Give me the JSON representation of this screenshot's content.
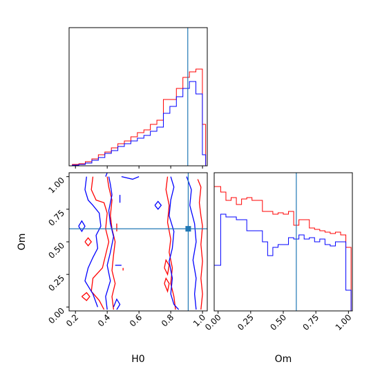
{
  "colors": {
    "red": "#ff0000",
    "blue": "#0000ff",
    "truth": "#1f77b4",
    "axis": "#000000"
  },
  "chart_data": [
    {
      "type": "histogram",
      "panel": "H0 marginal",
      "truth_value": 0.91,
      "x_edges": [
        0.2,
        0.24,
        0.28,
        0.32,
        0.36,
        0.4,
        0.44,
        0.48,
        0.52,
        0.56,
        0.6,
        0.64,
        0.68,
        0.72,
        0.76,
        0.8,
        0.84,
        0.88,
        0.92,
        0.96,
        1.0,
        1.02
      ],
      "xlim": [
        0.18,
        1.03
      ],
      "ylim": [
        0,
        1.0
      ],
      "series": [
        {
          "color": "red",
          "values": [
            0.01,
            0.015,
            0.03,
            0.05,
            0.08,
            0.1,
            0.13,
            0.16,
            0.18,
            0.21,
            0.24,
            0.26,
            0.3,
            0.33,
            0.48,
            0.48,
            0.56,
            0.64,
            0.68,
            0.7,
            0.3
          ]
        },
        {
          "color": "blue",
          "values": [
            0.005,
            0.01,
            0.02,
            0.04,
            0.06,
            0.09,
            0.11,
            0.14,
            0.16,
            0.18,
            0.2,
            0.22,
            0.25,
            0.28,
            0.38,
            0.43,
            0.5,
            0.56,
            0.61,
            0.52,
            0.08
          ]
        }
      ]
    },
    {
      "type": "histogram",
      "panel": "Om marginal",
      "truth_value": 0.6,
      "x_edges": [
        -0.03,
        0.02,
        0.06,
        0.1,
        0.14,
        0.18,
        0.22,
        0.26,
        0.3,
        0.34,
        0.38,
        0.42,
        0.46,
        0.5,
        0.54,
        0.58,
        0.62,
        0.66,
        0.7,
        0.74,
        0.78,
        0.82,
        0.86,
        0.9,
        0.94,
        0.98,
        1.02
      ],
      "xlim": [
        -0.03,
        1.03
      ],
      "ylim": [
        0,
        1.0
      ],
      "series": [
        {
          "color": "red",
          "values": [
            0.9,
            0.86,
            0.8,
            0.82,
            0.77,
            0.81,
            0.82,
            0.8,
            0.8,
            0.72,
            0.72,
            0.7,
            0.71,
            0.7,
            0.72,
            0.62,
            0.66,
            0.66,
            0.6,
            0.59,
            0.58,
            0.57,
            0.56,
            0.57,
            0.55,
            0.46
          ]
        },
        {
          "color": "blue",
          "values": [
            0.33,
            0.7,
            0.68,
            0.68,
            0.66,
            0.66,
            0.58,
            0.58,
            0.58,
            0.5,
            0.4,
            0.46,
            0.48,
            0.48,
            0.53,
            0.52,
            0.55,
            0.52,
            0.53,
            0.5,
            0.52,
            0.48,
            0.47,
            0.5,
            0.5,
            0.15
          ]
        }
      ]
    },
    {
      "type": "contour",
      "panel": "H0 vs Om",
      "xlabel": "H0",
      "ylabel": "Om",
      "xlim": [
        0.16,
        1.03
      ],
      "ylim": [
        -0.03,
        1.03
      ],
      "xticks": [
        "0.2",
        "0.4",
        "0.6",
        "0.8",
        "1.0"
      ],
      "xtick_values": [
        0.2,
        0.4,
        0.6,
        0.8,
        1.0
      ],
      "yticks": [
        "0.00",
        "0.25",
        "0.50",
        "0.75",
        "1.00"
      ],
      "ytick_values": [
        0.0,
        0.25,
        0.5,
        0.75,
        1.0
      ],
      "truth": {
        "x": 0.91,
        "y": 0.6
      },
      "series": [
        {
          "color": "red",
          "contours": [
            [
              [
                0.31,
                1.0
              ],
              [
                0.3,
                0.9
              ],
              [
                0.33,
                0.82
              ],
              [
                0.38,
                0.8
              ],
              [
                0.4,
                0.72
              ],
              [
                0.39,
                0.6
              ],
              [
                0.41,
                0.5
              ],
              [
                0.39,
                0.4
              ],
              [
                0.37,
                0.3
              ],
              [
                0.31,
                0.22
              ],
              [
                0.3,
                0.12
              ],
              [
                0.35,
                0.05
              ],
              [
                0.38,
                -0.02
              ]
            ],
            [
              [
                0.4,
                1.0
              ],
              [
                0.41,
                0.92
              ],
              [
                0.43,
                0.82
              ],
              [
                0.42,
                0.7
              ],
              [
                0.43,
                0.6
              ],
              [
                0.45,
                0.5
              ],
              [
                0.44,
                0.4
              ],
              [
                0.43,
                0.28
              ],
              [
                0.45,
                0.18
              ],
              [
                0.43,
                0.08
              ],
              [
                0.44,
                -0.02
              ]
            ],
            [
              [
                0.78,
                1.0
              ],
              [
                0.77,
                0.9
              ],
              [
                0.79,
                0.78
              ],
              [
                0.78,
                0.65
              ],
              [
                0.8,
                0.52
              ],
              [
                0.79,
                0.42
              ],
              [
                0.81,
                0.3
              ],
              [
                0.8,
                0.18
              ],
              [
                0.82,
                0.08
              ],
              [
                0.83,
                -0.02
              ]
            ],
            [
              [
                0.97,
                0.98
              ],
              [
                0.99,
                0.92
              ],
              [
                0.98,
                0.8
              ],
              [
                0.99,
                0.7
              ],
              [
                1.0,
                0.62
              ],
              [
                0.99,
                0.48
              ],
              [
                1.0,
                0.35
              ],
              [
                0.99,
                0.22
              ],
              [
                1.0,
                0.1
              ],
              [
                0.99,
                -0.02
              ]
            ],
            [
              [
                0.24,
                0.08
              ],
              [
                0.27,
                0.05
              ],
              [
                0.29,
                0.08
              ],
              [
                0.27,
                0.11
              ],
              [
                0.24,
                0.08
              ]
            ],
            [
              [
                0.26,
                0.5
              ],
              [
                0.28,
                0.47
              ],
              [
                0.3,
                0.5
              ],
              [
                0.28,
                0.53
              ],
              [
                0.26,
                0.5
              ]
            ],
            [
              [
                0.76,
                0.3
              ],
              [
                0.78,
                0.25
              ],
              [
                0.79,
                0.32
              ],
              [
                0.77,
                0.36
              ],
              [
                0.76,
                0.3
              ]
            ],
            [
              [
                0.76,
                0.18
              ],
              [
                0.78,
                0.12
              ],
              [
                0.79,
                0.18
              ],
              [
                0.77,
                0.22
              ],
              [
                0.76,
                0.18
              ]
            ],
            [
              [
                0.46,
                0.58
              ],
              [
                0.46,
                0.64
              ]
            ],
            [
              [
                0.5,
                0.28
              ],
              [
                0.5,
                0.3
              ]
            ]
          ]
        },
        {
          "color": "blue",
          "contours": [
            [
              [
                0.27,
                1.0
              ],
              [
                0.26,
                0.9
              ],
              [
                0.28,
                0.82
              ],
              [
                0.31,
                0.78
              ],
              [
                0.35,
                0.72
              ],
              [
                0.36,
                0.62
              ],
              [
                0.33,
                0.55
              ],
              [
                0.34,
                0.45
              ],
              [
                0.31,
                0.38
              ],
              [
                0.28,
                0.3
              ],
              [
                0.26,
                0.2
              ],
              [
                0.31,
                0.1
              ],
              [
                0.34,
                0.0
              ]
            ],
            [
              [
                0.41,
                1.0
              ],
              [
                0.42,
                0.94
              ],
              [
                0.43,
                0.86
              ],
              [
                0.41,
                0.74
              ],
              [
                0.42,
                0.64
              ],
              [
                0.44,
                0.54
              ],
              [
                0.42,
                0.42
              ],
              [
                0.4,
                0.32
              ],
              [
                0.42,
                0.2
              ],
              [
                0.39,
                0.08
              ],
              [
                0.4,
                -0.02
              ]
            ],
            [
              [
                0.49,
                1.0
              ],
              [
                0.56,
                0.98
              ],
              [
                0.6,
                1.0
              ]
            ],
            [
              [
                0.8,
                1.0
              ],
              [
                0.82,
                0.92
              ],
              [
                0.8,
                0.82
              ],
              [
                0.79,
                0.7
              ],
              [
                0.82,
                0.58
              ],
              [
                0.81,
                0.45
              ],
              [
                0.79,
                0.35
              ],
              [
                0.81,
                0.22
              ],
              [
                0.8,
                0.1
              ],
              [
                0.82,
                0.02
              ],
              [
                0.85,
                -0.02
              ]
            ],
            [
              [
                0.9,
                1.0
              ],
              [
                0.93,
                0.9
              ],
              [
                0.92,
                0.78
              ],
              [
                0.95,
                0.64
              ],
              [
                0.96,
                0.5
              ],
              [
                0.94,
                0.36
              ],
              [
                0.96,
                0.22
              ],
              [
                0.95,
                0.1
              ],
              [
                0.96,
                -0.02
              ]
            ],
            [
              [
                0.22,
                0.62
              ],
              [
                0.24,
                0.58
              ],
              [
                0.26,
                0.62
              ],
              [
                0.24,
                0.66
              ],
              [
                0.22,
                0.62
              ]
            ],
            [
              [
                0.7,
                0.78
              ],
              [
                0.72,
                0.75
              ],
              [
                0.74,
                0.78
              ],
              [
                0.72,
                0.81
              ],
              [
                0.7,
                0.78
              ]
            ],
            [
              [
                0.44,
                0.0
              ],
              [
                0.46,
                0.06
              ],
              [
                0.48,
                0.02
              ],
              [
                0.46,
                -0.02
              ]
            ],
            [
              [
                0.48,
                0.8
              ],
              [
                0.48,
                0.86
              ]
            ],
            [
              [
                0.39,
                1.0
              ],
              [
                0.4,
                1.04
              ]
            ],
            [
              [
                0.45,
                0.32
              ],
              [
                0.49,
                0.32
              ]
            ]
          ]
        }
      ]
    }
  ]
}
